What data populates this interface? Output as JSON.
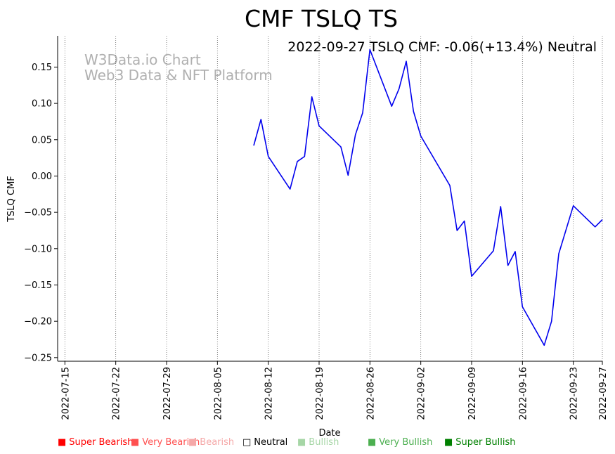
{
  "chart_data": {
    "type": "line",
    "title": "CMF TSLQ TS",
    "subtitle": "2022-09-27 TSLQ CMF: -0.06(+13.4%) Neutral",
    "watermark_line1": "W3Data.io Chart",
    "watermark_line2": "Web3 Data & NFT Platform",
    "xlabel": "Date",
    "ylabel": "TSLQ CMF",
    "ylim": [
      -0.255,
      0.193
    ],
    "yticks": [
      -0.25,
      -0.2,
      -0.15,
      -0.1,
      -0.05,
      0.0,
      0.05,
      0.1,
      0.15
    ],
    "ytick_labels": [
      "−0.25",
      "−0.20",
      "−0.15",
      "−0.10",
      "−0.05",
      "0.00",
      "0.05",
      "0.10",
      "0.15"
    ],
    "xlim": [
      "2022-07-14",
      "2022-09-27"
    ],
    "xticks": [
      "2022-07-15",
      "2022-07-22",
      "2022-07-29",
      "2022-08-05",
      "2022-08-12",
      "2022-08-19",
      "2022-08-26",
      "2022-09-02",
      "2022-09-09",
      "2022-09-16",
      "2022-09-23",
      "2022-09-27"
    ],
    "series": [
      {
        "name": "TSLQ CMF",
        "color": "#0000ee",
        "x": [
          "2022-08-10",
          "2022-08-11",
          "2022-08-12",
          "2022-08-15",
          "2022-08-16",
          "2022-08-17",
          "2022-08-18",
          "2022-08-19",
          "2022-08-22",
          "2022-08-23",
          "2022-08-24",
          "2022-08-25",
          "2022-08-26",
          "2022-08-29",
          "2022-08-30",
          "2022-08-31",
          "2022-09-01",
          "2022-09-02",
          "2022-09-06",
          "2022-09-07",
          "2022-09-08",
          "2022-09-09",
          "2022-09-12",
          "2022-09-13",
          "2022-09-14",
          "2022-09-15",
          "2022-09-16",
          "2022-09-19",
          "2022-09-20",
          "2022-09-21",
          "2022-09-23",
          "2022-09-26",
          "2022-09-27"
        ],
        "values": [
          0.042,
          0.078,
          0.027,
          -0.018,
          0.02,
          0.027,
          0.109,
          0.069,
          0.04,
          0.001,
          0.057,
          0.087,
          0.174,
          0.096,
          0.12,
          0.158,
          0.089,
          0.055,
          -0.013,
          -0.075,
          -0.062,
          -0.138,
          -0.103,
          -0.042,
          -0.123,
          -0.104,
          -0.18,
          -0.233,
          -0.2,
          -0.107,
          -0.041,
          -0.07,
          -0.06
        ]
      }
    ],
    "legend": [
      {
        "label": "Super Bearish",
        "color": "#ff0000",
        "marker": "■"
      },
      {
        "label": "Very Bearish",
        "color": "#ff5050",
        "marker": "■"
      },
      {
        "label": "Bearish",
        "color": "#f5a8a8",
        "marker": "■"
      },
      {
        "label": "Neutral",
        "color": "#000000",
        "marker": "□"
      },
      {
        "label": "Bullish",
        "color": "#a6d6a6",
        "marker": "■"
      },
      {
        "label": "Very Bullish",
        "color": "#4caf50",
        "marker": "■"
      },
      {
        "label": "Super Bullish",
        "color": "#008000",
        "marker": "■"
      }
    ]
  }
}
